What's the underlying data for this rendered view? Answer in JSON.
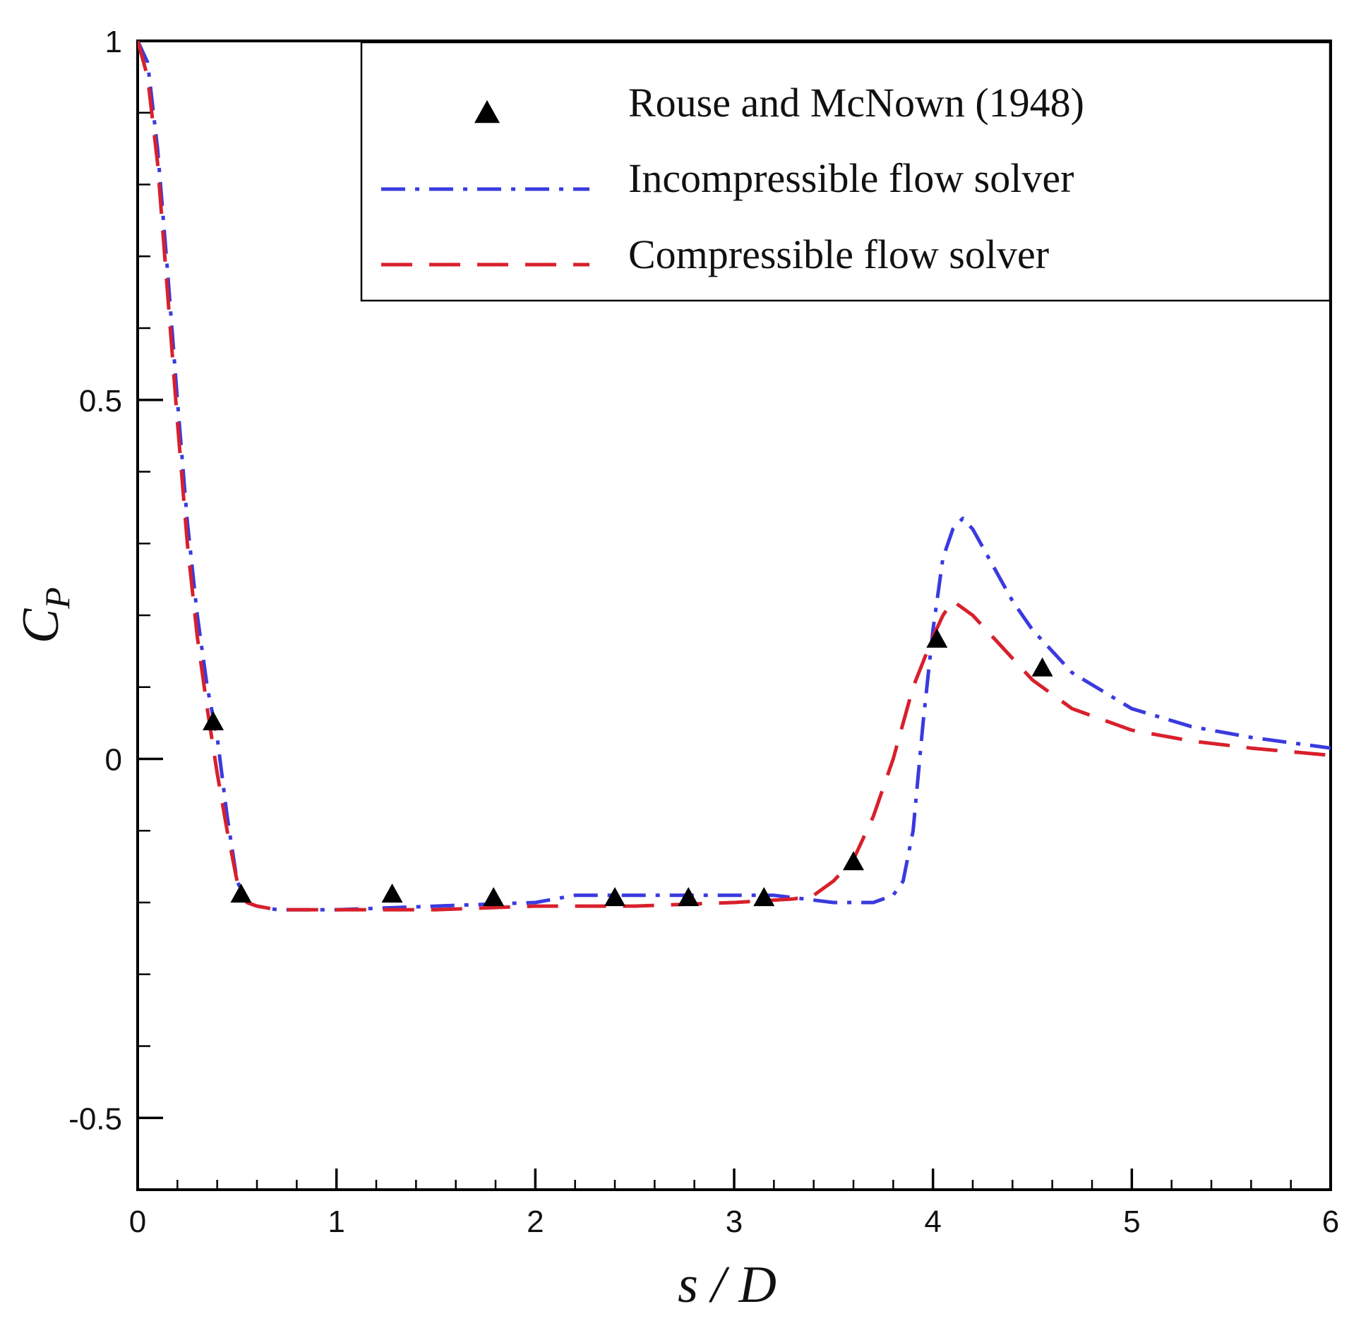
{
  "chart_data": {
    "type": "line",
    "xlabel": "s / D",
    "ylabel": "C",
    "ylabel_sub": "P",
    "xlim": [
      0,
      6
    ],
    "ylim": [
      -0.6,
      1
    ],
    "x_ticks": [
      0,
      1,
      2,
      3,
      4,
      5,
      6
    ],
    "x_tick_labels": [
      "0",
      "1",
      "2",
      "3",
      "4",
      "5",
      "6"
    ],
    "x_minor_step": 0.2,
    "y_ticks": [
      -0.5,
      0,
      0.5,
      1
    ],
    "y_tick_labels": [
      "-0.5",
      "0",
      "0.5",
      "1"
    ],
    "y_minor_step": 0.1,
    "grid": false,
    "legend_position": "top-right",
    "series": [
      {
        "name": "Rouse and McNown (1948)",
        "style": "markers",
        "marker": "triangle",
        "color": "#000000",
        "x": [
          0.38,
          0.52,
          1.28,
          1.79,
          2.4,
          2.77,
          3.15,
          3.6,
          4.02,
          4.55
        ],
        "y": [
          0.05,
          -0.19,
          -0.19,
          -0.195,
          -0.195,
          -0.195,
          -0.195,
          -0.145,
          0.165,
          0.125
        ]
      },
      {
        "name": "Incompressible flow solver",
        "style": "dash-dot",
        "color": "#3a3adf",
        "x": [
          0.0,
          0.05,
          0.1,
          0.15,
          0.2,
          0.25,
          0.3,
          0.35,
          0.4,
          0.45,
          0.5,
          0.55,
          0.6,
          0.7,
          1.0,
          1.5,
          2.0,
          2.2,
          2.5,
          3.0,
          3.2,
          3.5,
          3.7,
          3.8,
          3.85,
          3.9,
          3.95,
          4.0,
          4.05,
          4.1,
          4.15,
          4.2,
          4.3,
          4.4,
          4.5,
          4.7,
          5.0,
          5.3,
          5.6,
          6.0
        ],
        "y": [
          1.0,
          0.97,
          0.85,
          0.68,
          0.5,
          0.33,
          0.2,
          0.1,
          0.03,
          -0.08,
          -0.17,
          -0.2,
          -0.205,
          -0.21,
          -0.21,
          -0.205,
          -0.2,
          -0.19,
          -0.19,
          -0.19,
          -0.19,
          -0.2,
          -0.2,
          -0.19,
          -0.17,
          -0.1,
          0.05,
          0.18,
          0.28,
          0.32,
          0.335,
          0.32,
          0.27,
          0.22,
          0.18,
          0.12,
          0.07,
          0.045,
          0.03,
          0.015
        ]
      },
      {
        "name": "Compressible flow solver",
        "style": "dashed",
        "color": "#d8202c",
        "x": [
          0.0,
          0.05,
          0.1,
          0.15,
          0.2,
          0.25,
          0.3,
          0.35,
          0.4,
          0.45,
          0.5,
          0.55,
          0.6,
          0.7,
          1.0,
          1.5,
          2.0,
          2.5,
          3.0,
          3.3,
          3.4,
          3.5,
          3.6,
          3.7,
          3.8,
          3.9,
          4.0,
          4.05,
          4.1,
          4.2,
          4.3,
          4.5,
          4.7,
          5.0,
          5.3,
          5.6,
          6.0
        ],
        "y": [
          1.0,
          0.95,
          0.83,
          0.65,
          0.47,
          0.3,
          0.17,
          0.07,
          -0.02,
          -0.1,
          -0.17,
          -0.2,
          -0.205,
          -0.21,
          -0.21,
          -0.21,
          -0.205,
          -0.205,
          -0.2,
          -0.195,
          -0.19,
          -0.17,
          -0.14,
          -0.08,
          0.0,
          0.1,
          0.17,
          0.2,
          0.22,
          0.2,
          0.17,
          0.11,
          0.07,
          0.04,
          0.025,
          0.015,
          0.005
        ]
      }
    ]
  }
}
